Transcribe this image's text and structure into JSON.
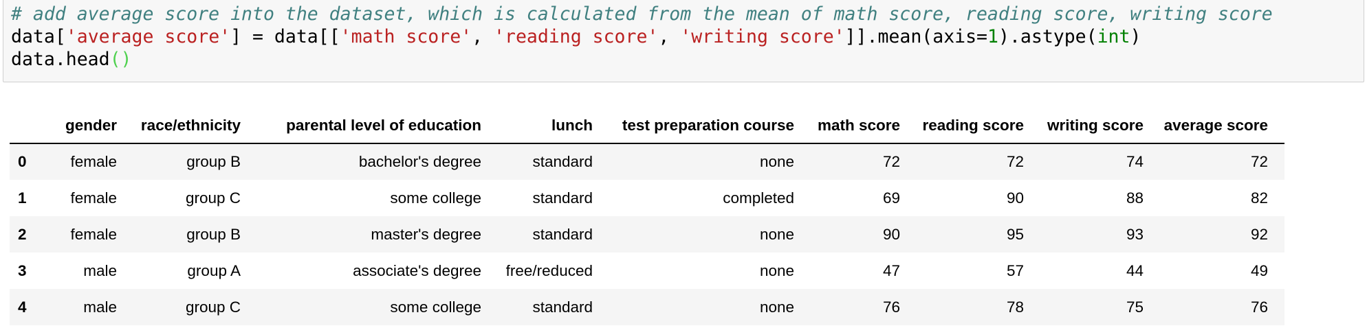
{
  "cell": {
    "code_comment": "# add average score into the dataset, which is calculated from the mean of math score, reading score, writing score",
    "line2": {
      "t1": "data[",
      "s1": "'average score'",
      "t2": "] = data[[",
      "s2": "'math score'",
      "t3": ", ",
      "s3": "'reading score'",
      "t4": ", ",
      "s4": "'writing score'",
      "t5": "]].mean(axis=",
      "n1": "1",
      "t6": ").astype(",
      "b1": "int",
      "t7": ")"
    },
    "line3": {
      "t1": "data.head",
      "p1": "()"
    }
  },
  "output": {
    "columns": [
      "gender",
      "race/ethnicity",
      "parental level of education",
      "lunch",
      "test preparation course",
      "math score",
      "reading score",
      "writing score",
      "average score"
    ],
    "rows": [
      {
        "index": "0",
        "cells": [
          "female",
          "group B",
          "bachelor's degree",
          "standard",
          "none",
          "72",
          "72",
          "74",
          "72"
        ]
      },
      {
        "index": "1",
        "cells": [
          "female",
          "group C",
          "some college",
          "standard",
          "completed",
          "69",
          "90",
          "88",
          "82"
        ]
      },
      {
        "index": "2",
        "cells": [
          "female",
          "group B",
          "master's degree",
          "standard",
          "none",
          "90",
          "95",
          "93",
          "92"
        ]
      },
      {
        "index": "3",
        "cells": [
          "male",
          "group A",
          "associate's degree",
          "free/reduced",
          "none",
          "47",
          "57",
          "44",
          "49"
        ]
      },
      {
        "index": "4",
        "cells": [
          "male",
          "group C",
          "some college",
          "standard",
          "none",
          "76",
          "78",
          "75",
          "76"
        ]
      }
    ]
  },
  "colors": {
    "comment": "#408080",
    "string": "#ba2121",
    "number": "#008000",
    "builtin": "#008000",
    "matched_paren": "#4fd14f",
    "cell_background": "#f7f7f7",
    "row_stripe": "#f5f5f5"
  }
}
